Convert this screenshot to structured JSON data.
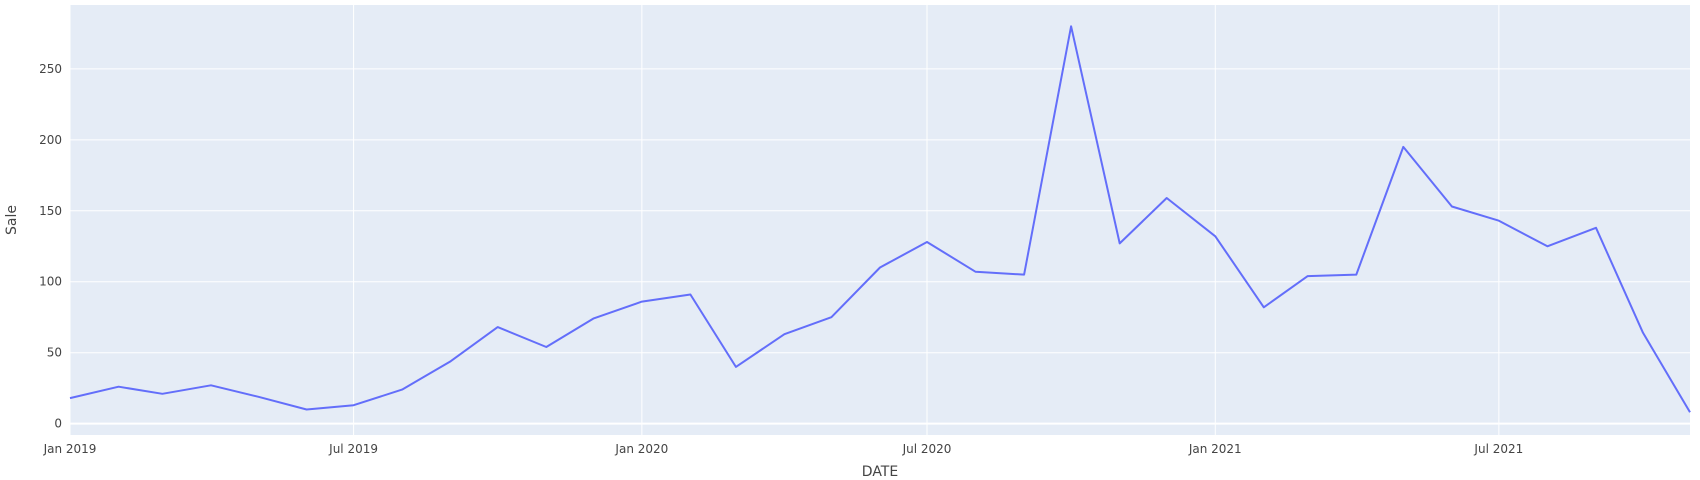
{
  "chart_data": {
    "type": "line",
    "title": "",
    "xlabel": "DATE",
    "ylabel": "Sale",
    "x_ticks": [
      "Jan 2019",
      "Jul 2019",
      "Jan 2020",
      "Jul 2020",
      "Jan 2021",
      "Jul 2021"
    ],
    "x_tick_dates": [
      "2019-01-01",
      "2019-07-01",
      "2020-01-01",
      "2020-07-01",
      "2021-01-01",
      "2021-07-01"
    ],
    "y_ticks": [
      0,
      50,
      100,
      150,
      200,
      250
    ],
    "xlim": [
      "2019-01-01",
      "2021-10-31"
    ],
    "ylim": [
      -8,
      295
    ],
    "grid": true,
    "plot_bg": "#e5ecf6",
    "line_color": "#636efa",
    "series": [
      {
        "x": [
          "2019-01-01",
          "2019-02-01",
          "2019-03-01",
          "2019-04-01",
          "2019-05-01",
          "2019-06-01",
          "2019-07-01",
          "2019-08-01",
          "2019-09-01",
          "2019-10-01",
          "2019-11-01",
          "2019-12-01",
          "2020-01-01",
          "2020-02-01",
          "2020-03-01",
          "2020-04-01",
          "2020-05-01",
          "2020-06-01",
          "2020-07-01",
          "2020-08-01",
          "2020-09-01",
          "2020-10-01",
          "2020-11-01",
          "2020-12-01",
          "2021-01-01",
          "2021-02-01",
          "2021-03-01",
          "2021-04-01",
          "2021-05-01",
          "2021-06-01",
          "2021-07-01",
          "2021-08-01",
          "2021-09-01",
          "2021-10-01",
          "2021-10-31"
        ],
        "y": [
          18,
          26,
          21,
          27,
          19,
          10,
          13,
          24,
          44,
          68,
          54,
          74,
          86,
          91,
          40,
          63,
          75,
          110,
          128,
          107,
          105,
          280,
          127,
          159,
          132,
          82,
          104,
          105,
          195,
          153,
          143,
          125,
          138,
          64,
          8
        ]
      }
    ]
  }
}
